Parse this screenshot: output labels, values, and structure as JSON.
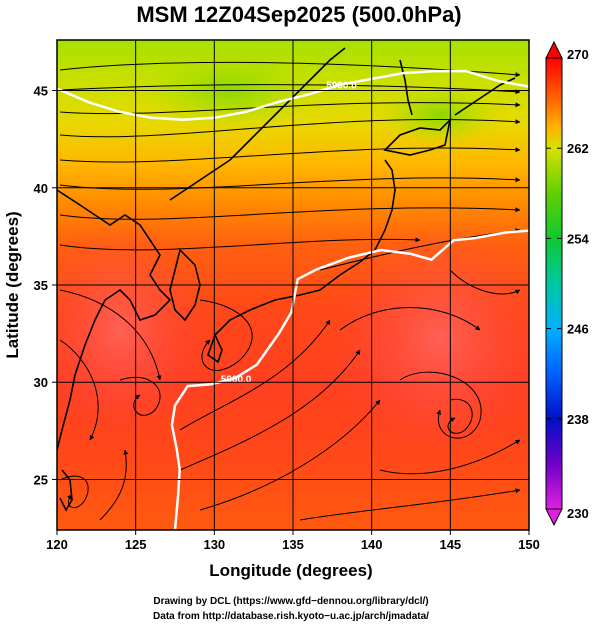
{
  "chart_data": {
    "type": "heatmap",
    "title": "MSM 12Z04Sep2025 (500.0hPa)",
    "xlabel": "Longitude (degrees)",
    "ylabel": "Latitude  (degrees)",
    "xlim": [
      120,
      150
    ],
    "ylim": [
      22.4,
      47.6
    ],
    "x_ticks": [
      120,
      125,
      130,
      135,
      140,
      145,
      150
    ],
    "y_ticks": [
      25,
      30,
      35,
      40,
      45
    ],
    "grid": true,
    "colorbar": {
      "min": 230,
      "max": 270,
      "ticks": [
        230,
        238,
        246,
        254,
        262,
        270
      ],
      "placement": "right"
    },
    "contours": [
      {
        "label": "5900.0",
        "points": [
          [
            120,
            45.1
          ],
          [
            122,
            44.4
          ],
          [
            124,
            43.9
          ],
          [
            126,
            43.6
          ],
          [
            128,
            43.5
          ],
          [
            130,
            43.6
          ],
          [
            132,
            43.9
          ],
          [
            134,
            44.4
          ],
          [
            136,
            44.8
          ],
          [
            138,
            45.3
          ],
          [
            140,
            45.6
          ],
          [
            142,
            45.9
          ],
          [
            144,
            46.0
          ],
          [
            146,
            46.0
          ],
          [
            148,
            45.5
          ],
          [
            150,
            45.2
          ]
        ]
      },
      {
        "label": "5900.0",
        "points": [
          [
            127.5,
            22.4
          ],
          [
            127.7,
            24.2
          ],
          [
            127.8,
            25.5
          ],
          [
            127.6,
            26.6
          ],
          [
            127.3,
            27.8
          ],
          [
            127.5,
            28.8
          ],
          [
            128.3,
            29.8
          ],
          [
            129.8,
            29.9
          ],
          [
            131.3,
            30.2
          ],
          [
            132.7,
            30.9
          ],
          [
            134.1,
            32.5
          ],
          [
            134.9,
            33.6
          ],
          [
            135.3,
            35.3
          ],
          [
            136.5,
            35.8
          ],
          [
            138.5,
            36.4
          ],
          [
            140.6,
            36.8
          ],
          [
            142.5,
            36.6
          ],
          [
            143.8,
            36.3
          ],
          [
            145.2,
            37.3
          ],
          [
            146.5,
            37.4
          ],
          [
            148.5,
            37.7
          ],
          [
            150,
            37.8
          ]
        ]
      }
    ],
    "colormap": [
      {
        "value": 230,
        "color": "#e020e0"
      },
      {
        "value": 234,
        "color": "#7000c8"
      },
      {
        "value": 238,
        "color": "#0010c8"
      },
      {
        "value": 242,
        "color": "#0060ff"
      },
      {
        "value": 246,
        "color": "#00b0ff"
      },
      {
        "value": 250,
        "color": "#00c8a0"
      },
      {
        "value": 254,
        "color": "#10c830"
      },
      {
        "value": 258,
        "color": "#60d000"
      },
      {
        "value": 262,
        "color": "#d8e000"
      },
      {
        "value": 264,
        "color": "#ffb000"
      },
      {
        "value": 266,
        "color": "#ff7000"
      },
      {
        "value": 268,
        "color": "#ff3800"
      },
      {
        "value": 270,
        "color": "#ff0000"
      }
    ]
  },
  "credits": {
    "line1": "Drawing by DCL (https://www.gfd−dennou.org/library/dcl/)",
    "line2": "Data from http://database.rish.kyoto−u.ac.jp/arch/jmadata/"
  }
}
